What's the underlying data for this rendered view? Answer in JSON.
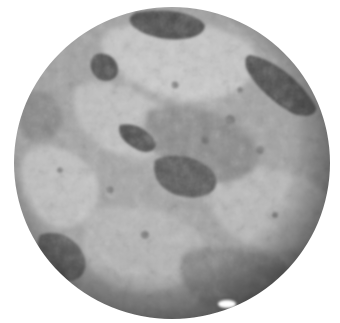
{
  "image": {
    "subject": "planet-globe",
    "palette": {
      "background": "#ffffff",
      "base": "#a9a9a9",
      "light": "#d2d2d2",
      "mid": "#8f8f8f",
      "dark": "#4f4f4f",
      "shadow": "#2e2e2e",
      "highlight": "#ffffff"
    }
  }
}
